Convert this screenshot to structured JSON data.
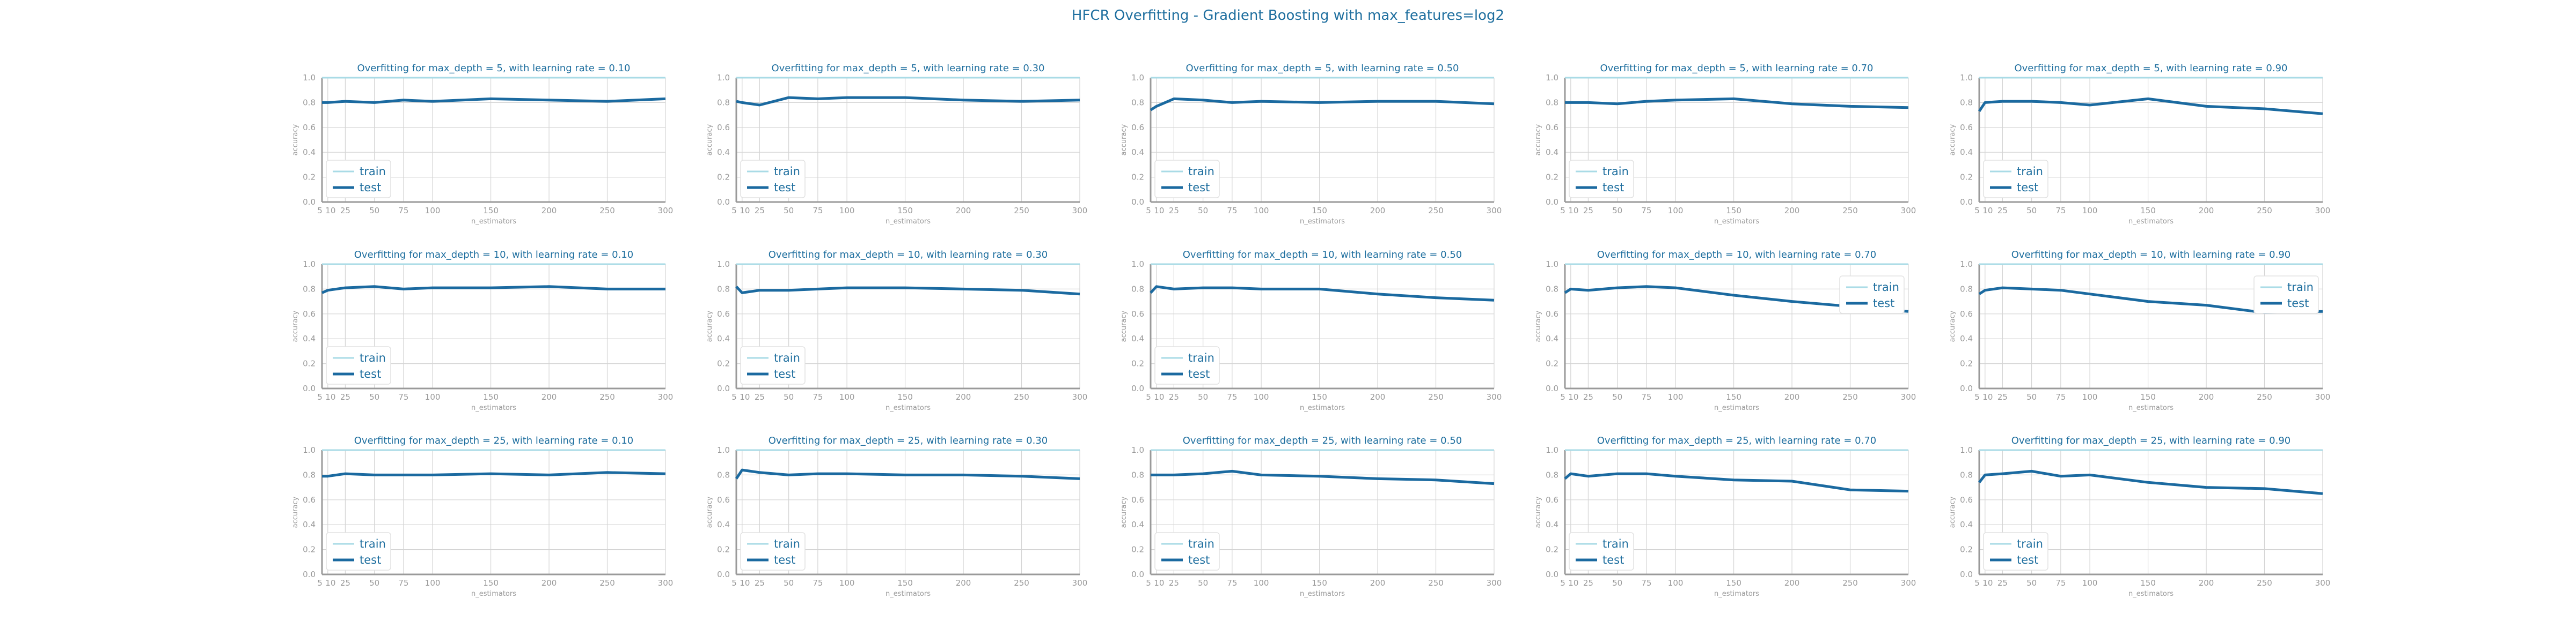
{
  "suptitle": "HFCR Overfitting - Gradient Boosting with max_features=log2",
  "colors": {
    "train": "#a9dbe6",
    "test": "#1b6aa0",
    "title": "#1f6f9f",
    "axis": "#9a9a9a",
    "grid": "#d4d4d4",
    "legend_text": "#1f6f9f"
  },
  "chart_data": [
    {
      "type": "line",
      "title": "Overfitting for max_depth = 5, with learning rate = 0.10",
      "xlabel": "n_estimators",
      "ylabel": "accuracy",
      "x": [
        5,
        10,
        25,
        50,
        75,
        100,
        150,
        200,
        250,
        300
      ],
      "xticks": [
        "5",
        "10",
        "25",
        "50",
        "75",
        "100",
        "150",
        "200",
        "250",
        "300"
      ],
      "xlim": [
        5,
        300
      ],
      "ylim": [
        0,
        1
      ],
      "yticks": [
        "0.0",
        "0.2",
        "0.4",
        "0.6",
        "0.8",
        "1.0"
      ],
      "grid": true,
      "legend": "lower-left",
      "series": [
        {
          "name": "train",
          "values": [
            1,
            1,
            1,
            1,
            1,
            1,
            1,
            1,
            1,
            1
          ]
        },
        {
          "name": "test",
          "values": [
            0.8,
            0.8,
            0.81,
            0.8,
            0.82,
            0.81,
            0.83,
            0.82,
            0.81,
            0.83
          ]
        }
      ]
    },
    {
      "type": "line",
      "title": "Overfitting for max_depth = 5, with learning rate = 0.30",
      "xlabel": "n_estimators",
      "ylabel": "accuracy",
      "x": [
        5,
        10,
        25,
        50,
        75,
        100,
        150,
        200,
        250,
        300
      ],
      "xticks": [
        "5",
        "10",
        "25",
        "50",
        "75",
        "100",
        "150",
        "200",
        "250",
        "300"
      ],
      "xlim": [
        5,
        300
      ],
      "ylim": [
        0,
        1
      ],
      "yticks": [
        "0.0",
        "0.2",
        "0.4",
        "0.6",
        "0.8",
        "1.0"
      ],
      "grid": true,
      "legend": "lower-left",
      "series": [
        {
          "name": "train",
          "values": [
            1,
            1,
            1,
            1,
            1,
            1,
            1,
            1,
            1,
            1
          ]
        },
        {
          "name": "test",
          "values": [
            0.81,
            0.8,
            0.78,
            0.84,
            0.83,
            0.84,
            0.84,
            0.82,
            0.81,
            0.82
          ]
        }
      ]
    },
    {
      "type": "line",
      "title": "Overfitting for max_depth = 5, with learning rate = 0.50",
      "xlabel": "n_estimators",
      "ylabel": "accuracy",
      "x": [
        5,
        10,
        25,
        50,
        75,
        100,
        150,
        200,
        250,
        300
      ],
      "xticks": [
        "5",
        "10",
        "25",
        "50",
        "75",
        "100",
        "150",
        "200",
        "250",
        "300"
      ],
      "xlim": [
        5,
        300
      ],
      "ylim": [
        0,
        1
      ],
      "yticks": [
        "0.0",
        "0.2",
        "0.4",
        "0.6",
        "0.8",
        "1.0"
      ],
      "grid": true,
      "legend": "lower-left",
      "series": [
        {
          "name": "train",
          "values": [
            1,
            1,
            1,
            1,
            1,
            1,
            1,
            1,
            1,
            1
          ]
        },
        {
          "name": "test",
          "values": [
            0.74,
            0.77,
            0.83,
            0.82,
            0.8,
            0.81,
            0.8,
            0.81,
            0.81,
            0.79
          ]
        }
      ]
    },
    {
      "type": "line",
      "title": "Overfitting for max_depth = 5, with learning rate = 0.70",
      "xlabel": "n_estimators",
      "ylabel": "accuracy",
      "x": [
        5,
        10,
        25,
        50,
        75,
        100,
        150,
        200,
        250,
        300
      ],
      "xticks": [
        "5",
        "10",
        "25",
        "50",
        "75",
        "100",
        "150",
        "200",
        "250",
        "300"
      ],
      "xlim": [
        5,
        300
      ],
      "ylim": [
        0,
        1
      ],
      "yticks": [
        "0.0",
        "0.2",
        "0.4",
        "0.6",
        "0.8",
        "1.0"
      ],
      "grid": true,
      "legend": "lower-left",
      "series": [
        {
          "name": "train",
          "values": [
            1,
            1,
            1,
            1,
            1,
            1,
            1,
            1,
            1,
            1
          ]
        },
        {
          "name": "test",
          "values": [
            0.8,
            0.8,
            0.8,
            0.79,
            0.81,
            0.82,
            0.83,
            0.79,
            0.77,
            0.76
          ]
        }
      ]
    },
    {
      "type": "line",
      "title": "Overfitting for max_depth = 5, with learning rate = 0.90",
      "xlabel": "n_estimators",
      "ylabel": "accuracy",
      "x": [
        5,
        10,
        25,
        50,
        75,
        100,
        150,
        200,
        250,
        300
      ],
      "xticks": [
        "5",
        "10",
        "25",
        "50",
        "75",
        "100",
        "150",
        "200",
        "250",
        "300"
      ],
      "xlim": [
        5,
        300
      ],
      "ylim": [
        0,
        1
      ],
      "yticks": [
        "0.0",
        "0.2",
        "0.4",
        "0.6",
        "0.8",
        "1.0"
      ],
      "grid": true,
      "legend": "lower-left",
      "series": [
        {
          "name": "train",
          "values": [
            1,
            1,
            1,
            1,
            1,
            1,
            1,
            1,
            1,
            1
          ]
        },
        {
          "name": "test",
          "values": [
            0.73,
            0.8,
            0.81,
            0.81,
            0.8,
            0.78,
            0.83,
            0.77,
            0.75,
            0.71
          ]
        }
      ]
    },
    {
      "type": "line",
      "title": "Overfitting for max_depth = 10, with learning rate = 0.10",
      "xlabel": "n_estimators",
      "ylabel": "accuracy",
      "x": [
        5,
        10,
        25,
        50,
        75,
        100,
        150,
        200,
        250,
        300
      ],
      "xticks": [
        "5",
        "10",
        "25",
        "50",
        "75",
        "100",
        "150",
        "200",
        "250",
        "300"
      ],
      "xlim": [
        5,
        300
      ],
      "ylim": [
        0,
        1
      ],
      "yticks": [
        "0.0",
        "0.2",
        "0.4",
        "0.6",
        "0.8",
        "1.0"
      ],
      "grid": true,
      "legend": "lower-left",
      "series": [
        {
          "name": "train",
          "values": [
            1,
            1,
            1,
            1,
            1,
            1,
            1,
            1,
            1,
            1
          ]
        },
        {
          "name": "test",
          "values": [
            0.77,
            0.79,
            0.81,
            0.82,
            0.8,
            0.81,
            0.81,
            0.82,
            0.8,
            0.8
          ]
        }
      ]
    },
    {
      "type": "line",
      "title": "Overfitting for max_depth = 10, with learning rate = 0.30",
      "xlabel": "n_estimators",
      "ylabel": "accuracy",
      "x": [
        5,
        10,
        25,
        50,
        75,
        100,
        150,
        200,
        250,
        300
      ],
      "xticks": [
        "5",
        "10",
        "25",
        "50",
        "75",
        "100",
        "150",
        "200",
        "250",
        "300"
      ],
      "xlim": [
        5,
        300
      ],
      "ylim": [
        0,
        1
      ],
      "yticks": [
        "0.0",
        "0.2",
        "0.4",
        "0.6",
        "0.8",
        "1.0"
      ],
      "grid": true,
      "legend": "lower-left",
      "series": [
        {
          "name": "train",
          "values": [
            1,
            1,
            1,
            1,
            1,
            1,
            1,
            1,
            1,
            1
          ]
        },
        {
          "name": "test",
          "values": [
            0.82,
            0.77,
            0.79,
            0.79,
            0.8,
            0.81,
            0.81,
            0.8,
            0.79,
            0.76
          ]
        }
      ]
    },
    {
      "type": "line",
      "title": "Overfitting for max_depth = 10, with learning rate = 0.50",
      "xlabel": "n_estimators",
      "ylabel": "accuracy",
      "x": [
        5,
        10,
        25,
        50,
        75,
        100,
        150,
        200,
        250,
        300
      ],
      "xticks": [
        "5",
        "10",
        "25",
        "50",
        "75",
        "100",
        "150",
        "200",
        "250",
        "300"
      ],
      "xlim": [
        5,
        300
      ],
      "ylim": [
        0,
        1
      ],
      "yticks": [
        "0.0",
        "0.2",
        "0.4",
        "0.6",
        "0.8",
        "1.0"
      ],
      "grid": true,
      "legend": "lower-left",
      "series": [
        {
          "name": "train",
          "values": [
            1,
            1,
            1,
            1,
            1,
            1,
            1,
            1,
            1,
            1
          ]
        },
        {
          "name": "test",
          "values": [
            0.77,
            0.82,
            0.8,
            0.81,
            0.81,
            0.8,
            0.8,
            0.76,
            0.73,
            0.71
          ]
        }
      ]
    },
    {
      "type": "line",
      "title": "Overfitting for max_depth = 10, with learning rate = 0.70",
      "xlabel": "n_estimators",
      "ylabel": "accuracy",
      "x": [
        5,
        10,
        25,
        50,
        75,
        100,
        150,
        200,
        250,
        300
      ],
      "xticks": [
        "5",
        "10",
        "25",
        "50",
        "75",
        "100",
        "150",
        "200",
        "250",
        "300"
      ],
      "xlim": [
        5,
        300
      ],
      "ylim": [
        0,
        1
      ],
      "yticks": [
        "0.0",
        "0.2",
        "0.4",
        "0.6",
        "0.8",
        "1.0"
      ],
      "grid": true,
      "legend": "upper-right",
      "series": [
        {
          "name": "train",
          "values": [
            1,
            1,
            1,
            1,
            1,
            1,
            1,
            1,
            1,
            1
          ]
        },
        {
          "name": "test",
          "values": [
            0.77,
            0.8,
            0.79,
            0.81,
            0.82,
            0.81,
            0.75,
            0.7,
            0.66,
            0.62
          ]
        }
      ]
    },
    {
      "type": "line",
      "title": "Overfitting for max_depth = 10, with learning rate = 0.90",
      "xlabel": "n_estimators",
      "ylabel": "accuracy",
      "x": [
        5,
        10,
        25,
        50,
        75,
        100,
        150,
        200,
        250,
        300
      ],
      "xticks": [
        "5",
        "10",
        "25",
        "50",
        "75",
        "100",
        "150",
        "200",
        "250",
        "300"
      ],
      "xlim": [
        5,
        300
      ],
      "ylim": [
        0,
        1
      ],
      "yticks": [
        "0.0",
        "0.2",
        "0.4",
        "0.6",
        "0.8",
        "1.0"
      ],
      "grid": true,
      "legend": "upper-right",
      "series": [
        {
          "name": "train",
          "values": [
            1,
            1,
            1,
            1,
            1,
            1,
            1,
            1,
            1,
            1
          ]
        },
        {
          "name": "test",
          "values": [
            0.76,
            0.79,
            0.81,
            0.8,
            0.79,
            0.76,
            0.7,
            0.67,
            0.61,
            0.62
          ]
        }
      ]
    },
    {
      "type": "line",
      "title": "Overfitting for max_depth = 25, with learning rate = 0.10",
      "xlabel": "n_estimators",
      "ylabel": "accuracy",
      "x": [
        5,
        10,
        25,
        50,
        75,
        100,
        150,
        200,
        250,
        300
      ],
      "xticks": [
        "5",
        "10",
        "25",
        "50",
        "75",
        "100",
        "150",
        "200",
        "250",
        "300"
      ],
      "xlim": [
        5,
        300
      ],
      "ylim": [
        0,
        1
      ],
      "yticks": [
        "0.0",
        "0.2",
        "0.4",
        "0.6",
        "0.8",
        "1.0"
      ],
      "grid": true,
      "legend": "lower-left",
      "series": [
        {
          "name": "train",
          "values": [
            1,
            1,
            1,
            1,
            1,
            1,
            1,
            1,
            1,
            1
          ]
        },
        {
          "name": "test",
          "values": [
            0.79,
            0.79,
            0.81,
            0.8,
            0.8,
            0.8,
            0.81,
            0.8,
            0.82,
            0.81
          ]
        }
      ]
    },
    {
      "type": "line",
      "title": "Overfitting for max_depth = 25, with learning rate = 0.30",
      "xlabel": "n_estimators",
      "ylabel": "accuracy",
      "x": [
        5,
        10,
        25,
        50,
        75,
        100,
        150,
        200,
        250,
        300
      ],
      "xticks": [
        "5",
        "10",
        "25",
        "50",
        "75",
        "100",
        "150",
        "200",
        "250",
        "300"
      ],
      "xlim": [
        5,
        300
      ],
      "ylim": [
        0,
        1
      ],
      "yticks": [
        "0.0",
        "0.2",
        "0.4",
        "0.6",
        "0.8",
        "1.0"
      ],
      "grid": true,
      "legend": "lower-left",
      "series": [
        {
          "name": "train",
          "values": [
            1,
            1,
            1,
            1,
            1,
            1,
            1,
            1,
            1,
            1
          ]
        },
        {
          "name": "test",
          "values": [
            0.77,
            0.84,
            0.82,
            0.8,
            0.81,
            0.81,
            0.8,
            0.8,
            0.79,
            0.77
          ]
        }
      ]
    },
    {
      "type": "line",
      "title": "Overfitting for max_depth = 25, with learning rate = 0.50",
      "xlabel": "n_estimators",
      "ylabel": "accuracy",
      "x": [
        5,
        10,
        25,
        50,
        75,
        100,
        150,
        200,
        250,
        300
      ],
      "xticks": [
        "5",
        "10",
        "25",
        "50",
        "75",
        "100",
        "150",
        "200",
        "250",
        "300"
      ],
      "xlim": [
        5,
        300
      ],
      "ylim": [
        0,
        1
      ],
      "yticks": [
        "0.0",
        "0.2",
        "0.4",
        "0.6",
        "0.8",
        "1.0"
      ],
      "grid": true,
      "legend": "lower-left",
      "series": [
        {
          "name": "train",
          "values": [
            1,
            1,
            1,
            1,
            1,
            1,
            1,
            1,
            1,
            1
          ]
        },
        {
          "name": "test",
          "values": [
            0.8,
            0.8,
            0.8,
            0.81,
            0.83,
            0.8,
            0.79,
            0.77,
            0.76,
            0.73
          ]
        }
      ]
    },
    {
      "type": "line",
      "title": "Overfitting for max_depth = 25, with learning rate = 0.70",
      "xlabel": "n_estimators",
      "ylabel": "accuracy",
      "x": [
        5,
        10,
        25,
        50,
        75,
        100,
        150,
        200,
        250,
        300
      ],
      "xticks": [
        "5",
        "10",
        "25",
        "50",
        "75",
        "100",
        "150",
        "200",
        "250",
        "300"
      ],
      "xlim": [
        5,
        300
      ],
      "ylim": [
        0,
        1
      ],
      "yticks": [
        "0.0",
        "0.2",
        "0.4",
        "0.6",
        "0.8",
        "1.0"
      ],
      "grid": true,
      "legend": "lower-left",
      "series": [
        {
          "name": "train",
          "values": [
            1,
            1,
            1,
            1,
            1,
            1,
            1,
            1,
            1,
            1
          ]
        },
        {
          "name": "test",
          "values": [
            0.77,
            0.81,
            0.79,
            0.81,
            0.81,
            0.79,
            0.76,
            0.75,
            0.68,
            0.67
          ]
        }
      ]
    },
    {
      "type": "line",
      "title": "Overfitting for max_depth = 25, with learning rate = 0.90",
      "xlabel": "n_estimators",
      "ylabel": "accuracy",
      "x": [
        5,
        10,
        25,
        50,
        75,
        100,
        150,
        200,
        250,
        300
      ],
      "xticks": [
        "5",
        "10",
        "25",
        "50",
        "75",
        "100",
        "150",
        "200",
        "250",
        "300"
      ],
      "xlim": [
        5,
        300
      ],
      "ylim": [
        0,
        1
      ],
      "yticks": [
        "0.0",
        "0.2",
        "0.4",
        "0.6",
        "0.8",
        "1.0"
      ],
      "grid": true,
      "legend": "lower-left",
      "series": [
        {
          "name": "train",
          "values": [
            1,
            1,
            1,
            1,
            1,
            1,
            1,
            1,
            1,
            1
          ]
        },
        {
          "name": "test",
          "values": [
            0.74,
            0.8,
            0.81,
            0.83,
            0.79,
            0.8,
            0.74,
            0.7,
            0.69,
            0.65
          ]
        }
      ]
    }
  ]
}
